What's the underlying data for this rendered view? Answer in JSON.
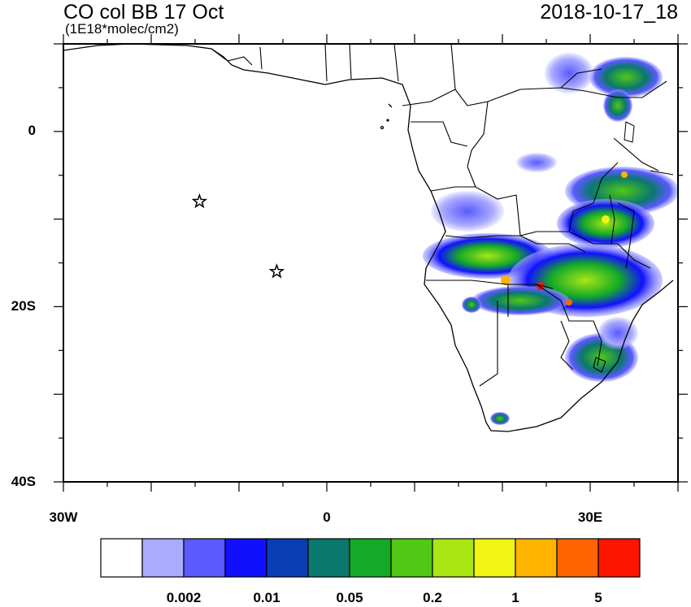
{
  "header": {
    "title": "CO col BB 17 Oct",
    "units": "(1E18*molec/cm2)",
    "datetime": "2018-10-17_18"
  },
  "map": {
    "lon_range": [
      -30,
      40
    ],
    "lat_range": [
      -40,
      10
    ],
    "lat_tick_labels": [
      "0",
      "20S",
      "40S"
    ],
    "lon_tick_labels": [
      "30W",
      "0",
      "30E"
    ],
    "markers": [
      {
        "name": "star-marker-1",
        "lon": -14.5,
        "lat": -8
      },
      {
        "name": "star-marker-2",
        "lon": -5.7,
        "lat": -16
      }
    ]
  },
  "colorbar": {
    "colors": [
      "#ffffff",
      "#aaaaff",
      "#5a5aff",
      "#1010ff",
      "#0a3cb4",
      "#0a786e",
      "#14aa28",
      "#50c814",
      "#aae614",
      "#f0f514",
      "#ffb400",
      "#ff6400",
      "#ff1400"
    ],
    "labels": [
      "0.002",
      "0.01",
      "0.05",
      "0.2",
      "1",
      "5"
    ]
  }
}
